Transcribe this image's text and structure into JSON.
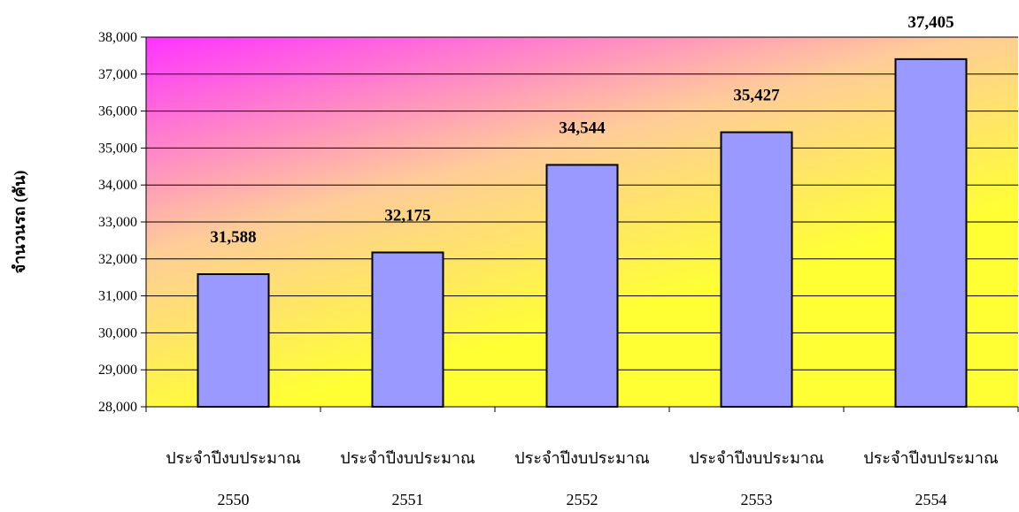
{
  "chart_data": {
    "type": "bar",
    "title": "",
    "xlabel": "",
    "ylabel": "จำนวนรถ (คัน)",
    "categories": [
      [
        "ประจำปีงบประมาณ",
        "2550"
      ],
      [
        "ประจำปีงบประมาณ",
        "2551"
      ],
      [
        "ประจำปีงบประมาณ",
        "2552"
      ],
      [
        "ประจำปีงบประมาณ",
        "2553"
      ],
      [
        "ประจำปีงบประมาณ",
        "2554"
      ]
    ],
    "values": [
      31588,
      32175,
      34544,
      35427,
      37405
    ],
    "value_labels": [
      "31,588",
      "32,175",
      "34,544",
      "35,427",
      "37,405"
    ],
    "ylim": [
      28000,
      38000
    ],
    "yticks": [
      28000,
      29000,
      30000,
      31000,
      32000,
      33000,
      34000,
      35000,
      36000,
      37000,
      38000
    ],
    "ytick_labels": [
      "28,000",
      "29,000",
      "30,000",
      "31,000",
      "32,000",
      "33,000",
      "34,000",
      "35,000",
      "36,000",
      "37,000",
      "38,000"
    ],
    "grid": true,
    "legend": "none",
    "colors": {
      "bar_fill": "#9999FF",
      "bar_stroke": "#000000",
      "plot_gradient_start": "#FF33FF",
      "plot_gradient_mid": "#FFCC99",
      "plot_gradient_end": "#FFFF33",
      "gridline": "#000000"
    }
  }
}
